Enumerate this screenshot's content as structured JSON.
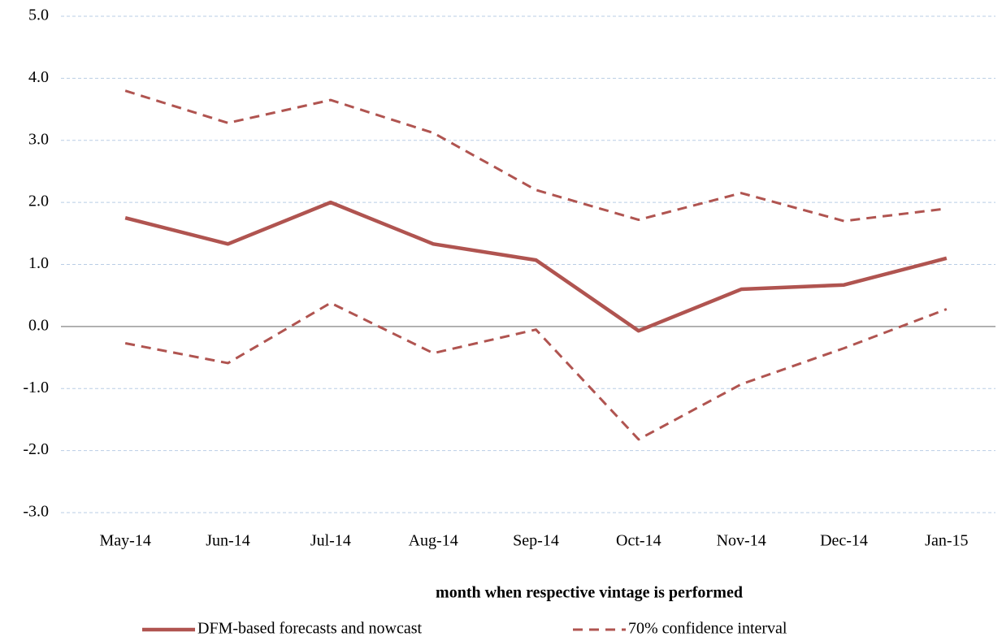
{
  "chart_data": {
    "type": "line",
    "x_label": "month when respective vintage is performed",
    "categories": [
      "May-14",
      "Jun-14",
      "Jul-14",
      "Aug-14",
      "Sep-14",
      "Oct-14",
      "Nov-14",
      "Dec-14",
      "Jan-15"
    ],
    "series": [
      {
        "name": "DFM-based forecasts and nowcast",
        "color": "#b05450",
        "dashed": false,
        "values": [
          1.75,
          1.33,
          2.0,
          1.33,
          1.07,
          -0.07,
          0.6,
          0.67,
          1.1
        ]
      },
      {
        "name": "70% confidence interval",
        "color": "#b05450",
        "dashed": true,
        "upper": [
          3.8,
          3.28,
          3.65,
          3.12,
          2.2,
          1.72,
          2.15,
          1.7,
          1.9
        ],
        "lower": [
          -0.27,
          -0.59,
          0.38,
          -0.43,
          -0.05,
          -1.82,
          -0.93,
          -0.35,
          0.28
        ]
      }
    ],
    "ylim": [
      -3,
      5
    ],
    "yticks": [
      {
        "value": -3,
        "label": "-3.0"
      },
      {
        "value": -2,
        "label": "-2.0"
      },
      {
        "value": -1,
        "label": "-1.0"
      },
      {
        "value": 0,
        "label": "0.0"
      },
      {
        "value": 1,
        "label": "1.0"
      },
      {
        "value": 2,
        "label": "2.0"
      },
      {
        "value": 3,
        "label": "3.0"
      },
      {
        "value": 4,
        "label": "4.0"
      },
      {
        "value": 5,
        "label": "5.0"
      }
    ],
    "grid": true,
    "legend": "bottom"
  }
}
